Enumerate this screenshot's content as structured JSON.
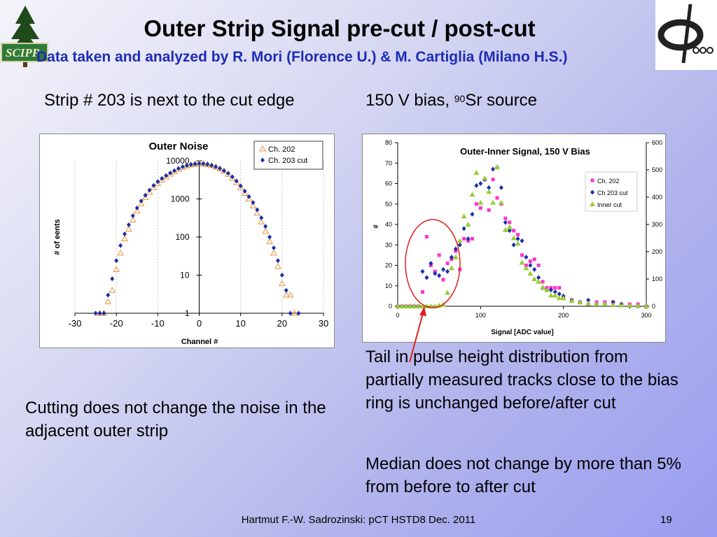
{
  "slide": {
    "title": "Outer Strip Signal pre-cut / post-cut",
    "subtitle": "Data taken and analyzed by R. Mori (Florence U.) & M. Cartiglia (Milano H.S.)",
    "left_heading": "Strip # 203 is next to the cut edge",
    "right_heading_pre": "150 V bias, ",
    "right_heading_sup": "90",
    "right_heading_post": "Sr source",
    "left_note": "Cutting does not change the noise in the adjacent outer strip",
    "right_note_1": "Tail in pulse height distribution from partially measured tracks close to the bias ring is unchanged before/after cut",
    "right_note_2": "Median does not change by more than 5% from before to after cut",
    "footer": "Hartmut F.-W. Sadrozinski: pCT HSTD8 Dec. 2011",
    "page_number": "19",
    "logo_text": "SCIPP",
    "colors": {
      "subtitle": "#1f2bb4",
      "ch202_noise": "#e8943a",
      "ch203": "#1a2fa8",
      "ch202_signal": "#ff33cc",
      "inner": "#99cc33",
      "circle": "#e02020"
    }
  },
  "chart_data": [
    {
      "type": "scatter",
      "title": "Outer Noise",
      "xlabel": "Channel #",
      "ylabel": "# of eents",
      "xlim": [
        -30,
        30
      ],
      "ylim": [
        1,
        10000
      ],
      "yscale": "log",
      "xticks": [
        "-30",
        "-20",
        "-10",
        "0",
        "10",
        "20",
        "30"
      ],
      "yticks": [
        "1",
        "10",
        "100",
        "1000",
        "10000"
      ],
      "legend_position": "top-right",
      "series": [
        {
          "name": "Ch. 202",
          "marker": "triangle-open",
          "x": [
            -24,
            -23,
            -22,
            -21,
            -20,
            -19,
            -18,
            -17,
            -16,
            -15,
            -14,
            -13,
            -12,
            -11,
            -10,
            -9,
            -8,
            -7,
            -6,
            -5,
            -4,
            -3,
            -2,
            -1,
            0,
            1,
            2,
            3,
            4,
            5,
            6,
            7,
            8,
            9,
            10,
            11,
            12,
            13,
            14,
            15,
            16,
            17,
            18,
            19,
            20,
            21,
            22,
            23
          ],
          "y": [
            1,
            1,
            2,
            4,
            14,
            38,
            90,
            160,
            280,
            480,
            750,
            1080,
            1500,
            2000,
            2550,
            3150,
            3800,
            4500,
            5200,
            6000,
            6700,
            7400,
            7900,
            8200,
            8400,
            8300,
            8000,
            7500,
            6900,
            6200,
            5300,
            4400,
            3500,
            2700,
            2000,
            1400,
            1000,
            660,
            420,
            250,
            140,
            75,
            38,
            17,
            6,
            3,
            3,
            1
          ]
        },
        {
          "name": "Ch. 203 cut",
          "marker": "diamond",
          "x": [
            -25,
            -24,
            -23,
            -22,
            -21,
            -20,
            -19,
            -18,
            -17,
            -16,
            -15,
            -14,
            -13,
            -12,
            -11,
            -10,
            -9,
            -8,
            -7,
            -6,
            -5,
            -4,
            -3,
            -2,
            -1,
            0,
            1,
            2,
            3,
            4,
            5,
            6,
            7,
            8,
            9,
            10,
            11,
            12,
            13,
            14,
            15,
            16,
            17,
            18,
            19,
            20,
            21,
            22,
            24
          ],
          "y": [
            1,
            1,
            1,
            3,
            8,
            24,
            60,
            120,
            210,
            360,
            580,
            880,
            1250,
            1700,
            2250,
            2850,
            3450,
            4100,
            4800,
            5500,
            6300,
            7000,
            7600,
            8000,
            8300,
            8500,
            8400,
            8100,
            7600,
            7000,
            6300,
            5500,
            4700,
            3800,
            2950,
            2200,
            1600,
            1150,
            800,
            520,
            320,
            190,
            100,
            52,
            24,
            10,
            4,
            1,
            1
          ]
        }
      ]
    },
    {
      "type": "scatter",
      "title": "Outer-Inner Signal, 150 V Bias",
      "xlabel": "Signal [ADC value]",
      "ylabel": "#",
      "xlim": [
        0,
        300
      ],
      "ylim": [
        0,
        80
      ],
      "y2lim": [
        0,
        600
      ],
      "xticks": [
        "0",
        "100",
        "200",
        "300"
      ],
      "yticks": [
        "0",
        "10",
        "20",
        "30",
        "40",
        "50",
        "60",
        "70",
        "80"
      ],
      "y2ticks": [
        "0",
        "100",
        "200",
        "300",
        "400",
        "500",
        "600"
      ],
      "legend_position": "right",
      "series": [
        {
          "name": "Ch. 202",
          "marker": "square",
          "axis": "left",
          "x": [
            0,
            5,
            10,
            15,
            20,
            25,
            30,
            35,
            40,
            45,
            50,
            55,
            60,
            65,
            70,
            75,
            80,
            85,
            90,
            95,
            100,
            105,
            110,
            115,
            120,
            125,
            130,
            135,
            140,
            145,
            150,
            155,
            160,
            165,
            170,
            175,
            180,
            185,
            190,
            195,
            200,
            210,
            220,
            230,
            240,
            250,
            260,
            270,
            280,
            290,
            300
          ],
          "y": [
            0,
            0,
            0,
            0,
            0,
            0,
            7,
            34,
            20,
            17,
            25,
            13,
            21,
            23,
            27,
            18,
            33,
            32,
            33,
            50,
            48,
            62,
            47,
            62,
            53,
            50,
            43,
            41,
            37,
            35,
            25,
            20,
            22,
            23,
            20,
            12,
            9,
            9,
            9,
            9,
            4,
            3,
            2,
            1,
            2,
            2,
            2,
            1,
            1,
            1,
            0
          ]
        },
        {
          "name": "Ch 203 cut",
          "marker": "diamond",
          "axis": "left",
          "x": [
            0,
            5,
            10,
            15,
            20,
            25,
            30,
            35,
            40,
            45,
            50,
            55,
            60,
            65,
            70,
            75,
            80,
            85,
            90,
            95,
            100,
            105,
            110,
            115,
            120,
            125,
            130,
            135,
            140,
            145,
            150,
            155,
            160,
            165,
            170,
            175,
            180,
            185,
            190,
            195,
            200,
            210,
            220,
            230,
            240,
            250,
            260,
            270,
            280,
            290,
            300
          ],
          "y": [
            0,
            0,
            0,
            0,
            0,
            0,
            17,
            14,
            21,
            16,
            15,
            18,
            17,
            24,
            28,
            30,
            38,
            33,
            45,
            59,
            60,
            62,
            58,
            67,
            68,
            58,
            41,
            37,
            30,
            33,
            32,
            24,
            20,
            18,
            14,
            9,
            8,
            8,
            7,
            6,
            5,
            3,
            2,
            3,
            1,
            1,
            2,
            1,
            0,
            0,
            0
          ]
        },
        {
          "name": "Inner cut",
          "marker": "triangle",
          "axis": "right",
          "x": [
            0,
            5,
            10,
            15,
            20,
            25,
            30,
            35,
            40,
            45,
            50,
            55,
            60,
            65,
            70,
            75,
            80,
            85,
            90,
            95,
            100,
            105,
            110,
            115,
            120,
            125,
            130,
            135,
            140,
            145,
            150,
            155,
            160,
            165,
            170,
            175,
            180,
            185,
            190,
            195,
            200,
            210,
            220,
            230,
            240,
            250,
            260,
            270,
            280,
            290,
            300
          ],
          "y": [
            0,
            0,
            0,
            0,
            0,
            0,
            0,
            0,
            0,
            0,
            3,
            6,
            50,
            140,
            180,
            240,
            330,
            300,
            410,
            490,
            380,
            470,
            420,
            380,
            510,
            380,
            280,
            290,
            250,
            230,
            160,
            140,
            120,
            100,
            90,
            70,
            60,
            40,
            40,
            30,
            30,
            20,
            15,
            10,
            8,
            8,
            5,
            4,
            3,
            2,
            0
          ]
        }
      ]
    }
  ]
}
